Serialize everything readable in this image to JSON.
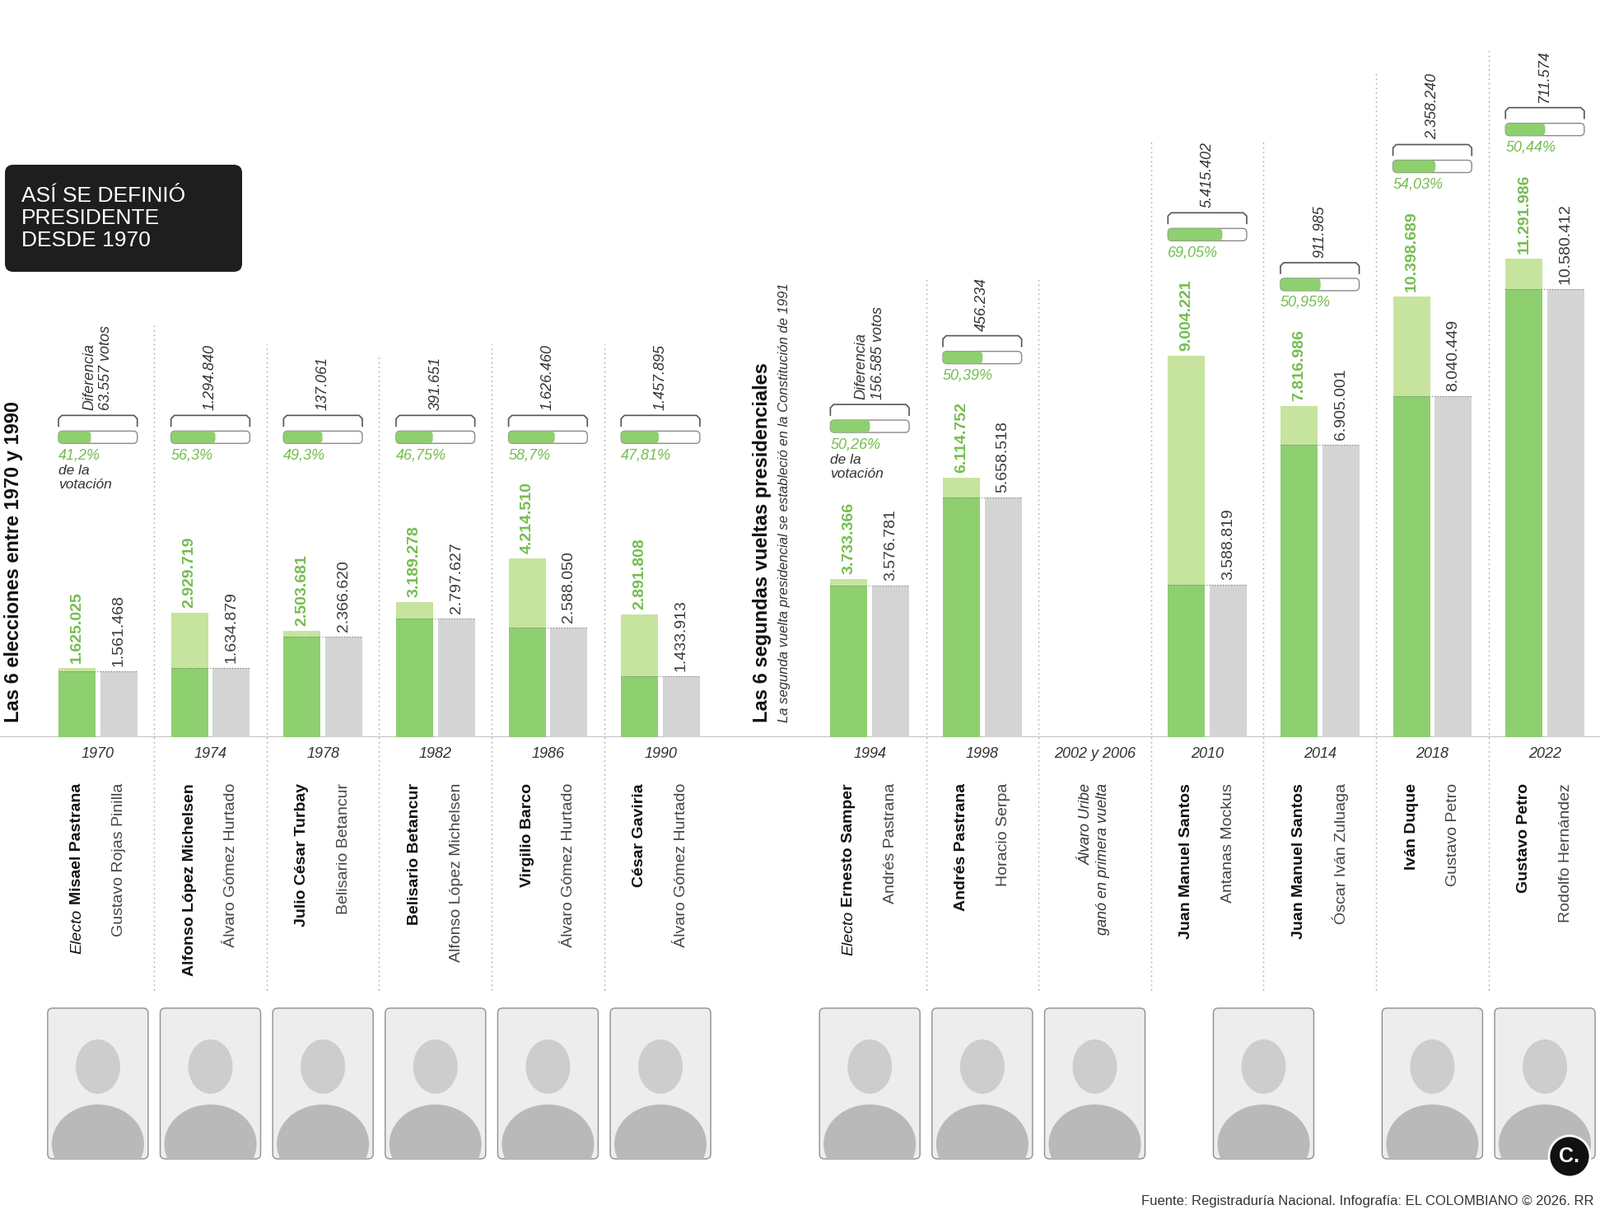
{
  "chart_data": {
    "type": "bar",
    "title": "ASÍ SE DEFINIÓ\nPRESIDENTE\nDESDE 1970",
    "sections": [
      {
        "title": "Las 6 elecciones entre 1970 y 1990",
        "start": "1970"
      },
      {
        "title": "Las 6 segundas vueltas presidenciales",
        "subtitle": "La segunda vuelta presidencial se estableció en la Constitución de 1991",
        "start": "1994"
      }
    ],
    "categories": [
      "1970",
      "1974",
      "1978",
      "1982",
      "1986",
      "1990",
      "1994",
      "1998",
      "2002 y 2006",
      "2010",
      "2014",
      "2018",
      "2022"
    ],
    "winners": [
      "Misael Pastrana",
      "Alfonso López Michelsen",
      "Julio César Turbay",
      "Belisario Betancur",
      "Virgilio Barco",
      "César Gaviria",
      "Ernesto Samper",
      "Andrés Pastrana",
      null,
      "Juan Manuel Santos",
      "Juan Manuel Santos",
      "Iván Duque",
      "Gustavo Petro"
    ],
    "winner_prefixes": [
      "Electo",
      null,
      null,
      null,
      null,
      null,
      "Electo",
      null,
      null,
      null,
      null,
      null,
      null
    ],
    "losers": [
      "Gustavo Rojas Pinilla",
      "Álvaro Gómez Hurtado",
      "Belisario Betancur",
      "Alfonso López Michelsen",
      "Álvaro Gómez Hurtado",
      "Álvaro Gómez Hurtado",
      "Andrés Pastrana",
      "Horacio Serpa",
      null,
      "Antanas Mockus",
      "Óscar Iván Zuluaga",
      "Gustavo Petro",
      "Rodolfo Hernández"
    ],
    "notes": [
      null,
      null,
      null,
      null,
      null,
      null,
      null,
      null,
      "Álvaro Uribe\nganó en primera vuelta",
      null,
      null,
      null,
      null
    ],
    "series": [
      {
        "color": "#8ecf6f",
        "values": [
          1625025,
          2929719,
          2503681,
          3189278,
          4214510,
          2891808,
          3733366,
          6114752,
          null,
          9004221,
          7816986,
          10398689,
          11291986
        ],
        "value_labels": [
          "1.625.025",
          "2.929.719",
          "2.503.681",
          "3.189.278",
          "4.214.510",
          "2.891.808",
          "3.733.366",
          "6.114.752",
          null,
          "9.004.221",
          "7.816.986",
          "10.398.689",
          "11.291.986"
        ]
      },
      {
        "color": "#d4d4d4",
        "values": [
          1561468,
          1634879,
          2366620,
          2797627,
          2588050,
          1433913,
          3576781,
          5658518,
          null,
          3588819,
          6905001,
          8040449,
          10580412
        ],
        "value_labels": [
          "1.561.468",
          "1.634.879",
          "2.366.620",
          "2.797.627",
          "2.588.050",
          "1.433.913",
          "3.576.781",
          "5.658.518",
          null,
          "3.588.819",
          "6.905.001",
          "8.040.449",
          "10.580.412"
        ]
      }
    ],
    "differences": {
      "color": "#c6e49e",
      "values": [
        63557,
        1294840,
        137061,
        391651,
        1626460,
        1457895,
        156585,
        456234,
        null,
        5415402,
        911985,
        2358240,
        711574
      ],
      "value_labels": [
        "Diferencia\n63.557 votos",
        "1.294.840",
        "137.061",
        "391.651",
        "1.626.460",
        "1.457.895",
        "Diferencia\n156.585 votos",
        "456.234",
        null,
        "5.415.402",
        "911.985",
        "2.358.240",
        "711.574"
      ]
    },
    "percentages": {
      "values": [
        41.2,
        56.3,
        49.3,
        46.75,
        58.7,
        47.81,
        50.26,
        50.39,
        null,
        69.05,
        50.95,
        54.03,
        50.44
      ],
      "value_labels": [
        "41,2%",
        "56,3%",
        "49,3%",
        "46,75%",
        "58,7%",
        "47,81%",
        "50,26%",
        "50,39%",
        null,
        "69,05%",
        "50,95%",
        "54,03%",
        "50,44%"
      ],
      "notes": [
        "de la\nvotación",
        null,
        null,
        null,
        null,
        null,
        "de la\nvotación",
        null,
        null,
        null,
        null,
        null,
        null
      ]
    },
    "ylim": [
      0,
      17400000
    ],
    "tick_labels": false,
    "data_labels": true,
    "source": "Fuente: Registraduría Nacional. Infografía: EL COLOMBIANO © 2026. RR",
    "logo": "C."
  }
}
